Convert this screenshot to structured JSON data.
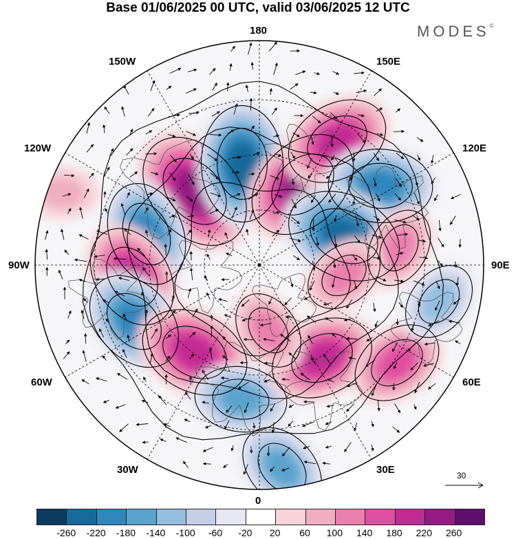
{
  "title": "Base 01/06/2025 00 UTC, valid 03/06/2025 12 UTC",
  "brand": "MODES",
  "brand_mark": "©",
  "longitude_labels": {
    "top": "180",
    "bottom": "0",
    "left": "90W",
    "right": "90E",
    "upper_left_1": "150W",
    "upper_left_2": "120W",
    "upper_right_1": "150E",
    "upper_right_2": "120E",
    "lower_left_1": "60W",
    "lower_left_2": "30W",
    "lower_right_1": "60E",
    "lower_right_2": "30E"
  },
  "reference_vector": {
    "label": "30"
  },
  "colorbar": {
    "colors": [
      "#0b3b5e",
      "#176a9a",
      "#2f87bd",
      "#5aa3cd",
      "#94bfe0",
      "#c4cfe6",
      "#e7e7f2",
      "#ffffff",
      "#f8d4da",
      "#f0aec0",
      "#ea7fad",
      "#e04ea0",
      "#c22a94",
      "#951b84",
      "#5e0f6e"
    ],
    "ticks": [
      "-260",
      "-220",
      "-180",
      "-140",
      "-100",
      "-60",
      "-20",
      "20",
      "60",
      "100",
      "140",
      "180",
      "220",
      "260"
    ]
  },
  "anomaly_features": [
    {
      "center": [
        283,
        278
      ],
      "value": 240
    },
    {
      "center": [
        352,
        238
      ],
      "value": -220
    },
    {
      "center": [
        440,
        268
      ],
      "value": 220
    },
    {
      "center": [
        490,
        205
      ],
      "value": 180
    },
    {
      "center": [
        553,
        270
      ],
      "value": -180
    },
    {
      "center": [
        500,
        343
      ],
      "value": -220
    },
    {
      "center": [
        213,
        340
      ],
      "value": -180
    },
    {
      "center": [
        192,
        402
      ],
      "value": 180
    },
    {
      "center": [
        195,
        467
      ],
      "value": -180
    },
    {
      "center": [
        283,
        512
      ],
      "value": 200
    },
    {
      "center": [
        350,
        580
      ],
      "value": -140
    },
    {
      "center": [
        468,
        520
      ],
      "value": 180
    },
    {
      "center": [
        577,
        527
      ],
      "value": 140
    },
    {
      "center": [
        638,
        438
      ],
      "value": -100
    },
    {
      "center": [
        580,
        360
      ],
      "value": 100
    },
    {
      "center": [
        500,
        400
      ],
      "value": 100
    },
    {
      "center": [
        410,
        680
      ],
      "value": -140
    },
    {
      "center": [
        390,
        480
      ],
      "value": 100
    },
    {
      "center": [
        90,
        280
      ],
      "value": 60
    }
  ]
}
